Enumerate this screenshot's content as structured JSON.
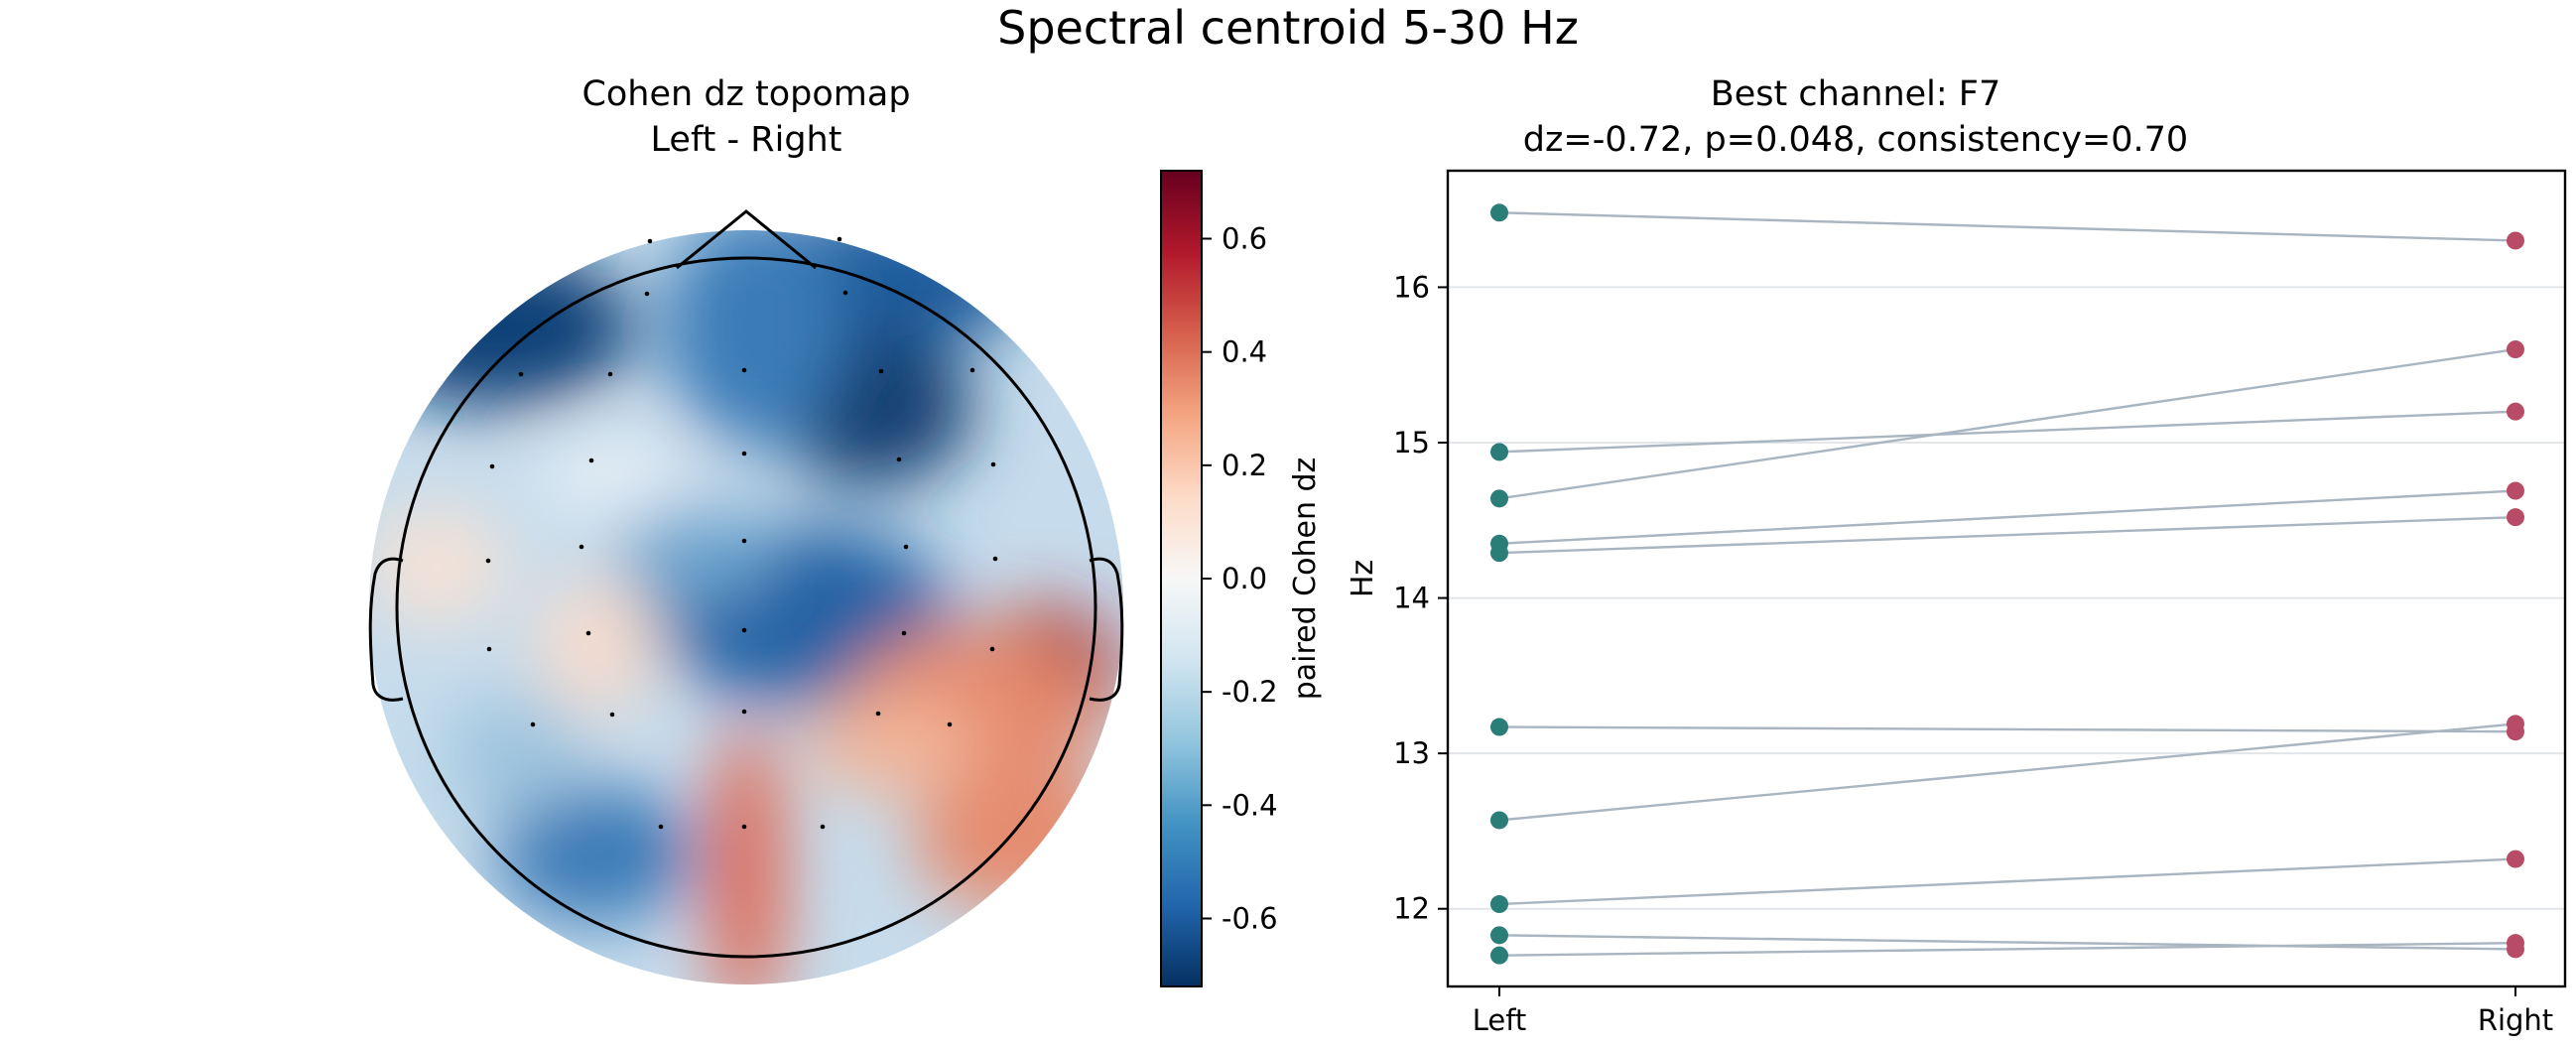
{
  "figure": {
    "suptitle": "Spectral centroid 5-30 Hz"
  },
  "topomap": {
    "title_line1": "Cohen dz topomap",
    "title_line2": "Left - Right",
    "colorbar_label": "paired Cohen dz",
    "colorbar_ticks": [
      0.6,
      0.4,
      0.2,
      0.0,
      -0.2,
      -0.4,
      -0.6
    ],
    "colorbar_tick_labels": [
      "0.6",
      "0.4",
      "0.2",
      "0.0",
      "-0.2",
      "-0.4",
      "-0.6"
    ],
    "vlim": [
      -0.72,
      0.72
    ],
    "cmap": "RdBu_r",
    "sensor_marker_color": "#000000",
    "head_outline_color": "#000000"
  },
  "chart_data": {
    "type": "scatter",
    "title_line1": "Best channel: F7",
    "title_line2": "dz=-0.72, p=0.048, consistency=0.70",
    "ylabel": "Hz",
    "categories": [
      "Left",
      "Right"
    ],
    "ylim": [
      11.5,
      16.75
    ],
    "yticks": [
      12,
      13,
      14,
      15,
      16
    ],
    "ytick_labels": [
      "12",
      "13",
      "14",
      "15",
      "16"
    ],
    "grid": "horizontal",
    "colors": {
      "left": "#2a7d78",
      "right": "#b84c66",
      "line": "#a9b5c0"
    },
    "pairs": [
      {
        "left": 16.48,
        "right": 16.3
      },
      {
        "left": 14.94,
        "right": 15.2
      },
      {
        "left": 14.64,
        "right": 15.6
      },
      {
        "left": 14.35,
        "right": 14.69
      },
      {
        "left": 14.29,
        "right": 14.52
      },
      {
        "left": 13.17,
        "right": 13.14
      },
      {
        "left": 12.57,
        "right": 13.19
      },
      {
        "left": 12.03,
        "right": 12.32
      },
      {
        "left": 11.83,
        "right": 11.74
      },
      {
        "left": 11.7,
        "right": 11.78
      }
    ]
  }
}
